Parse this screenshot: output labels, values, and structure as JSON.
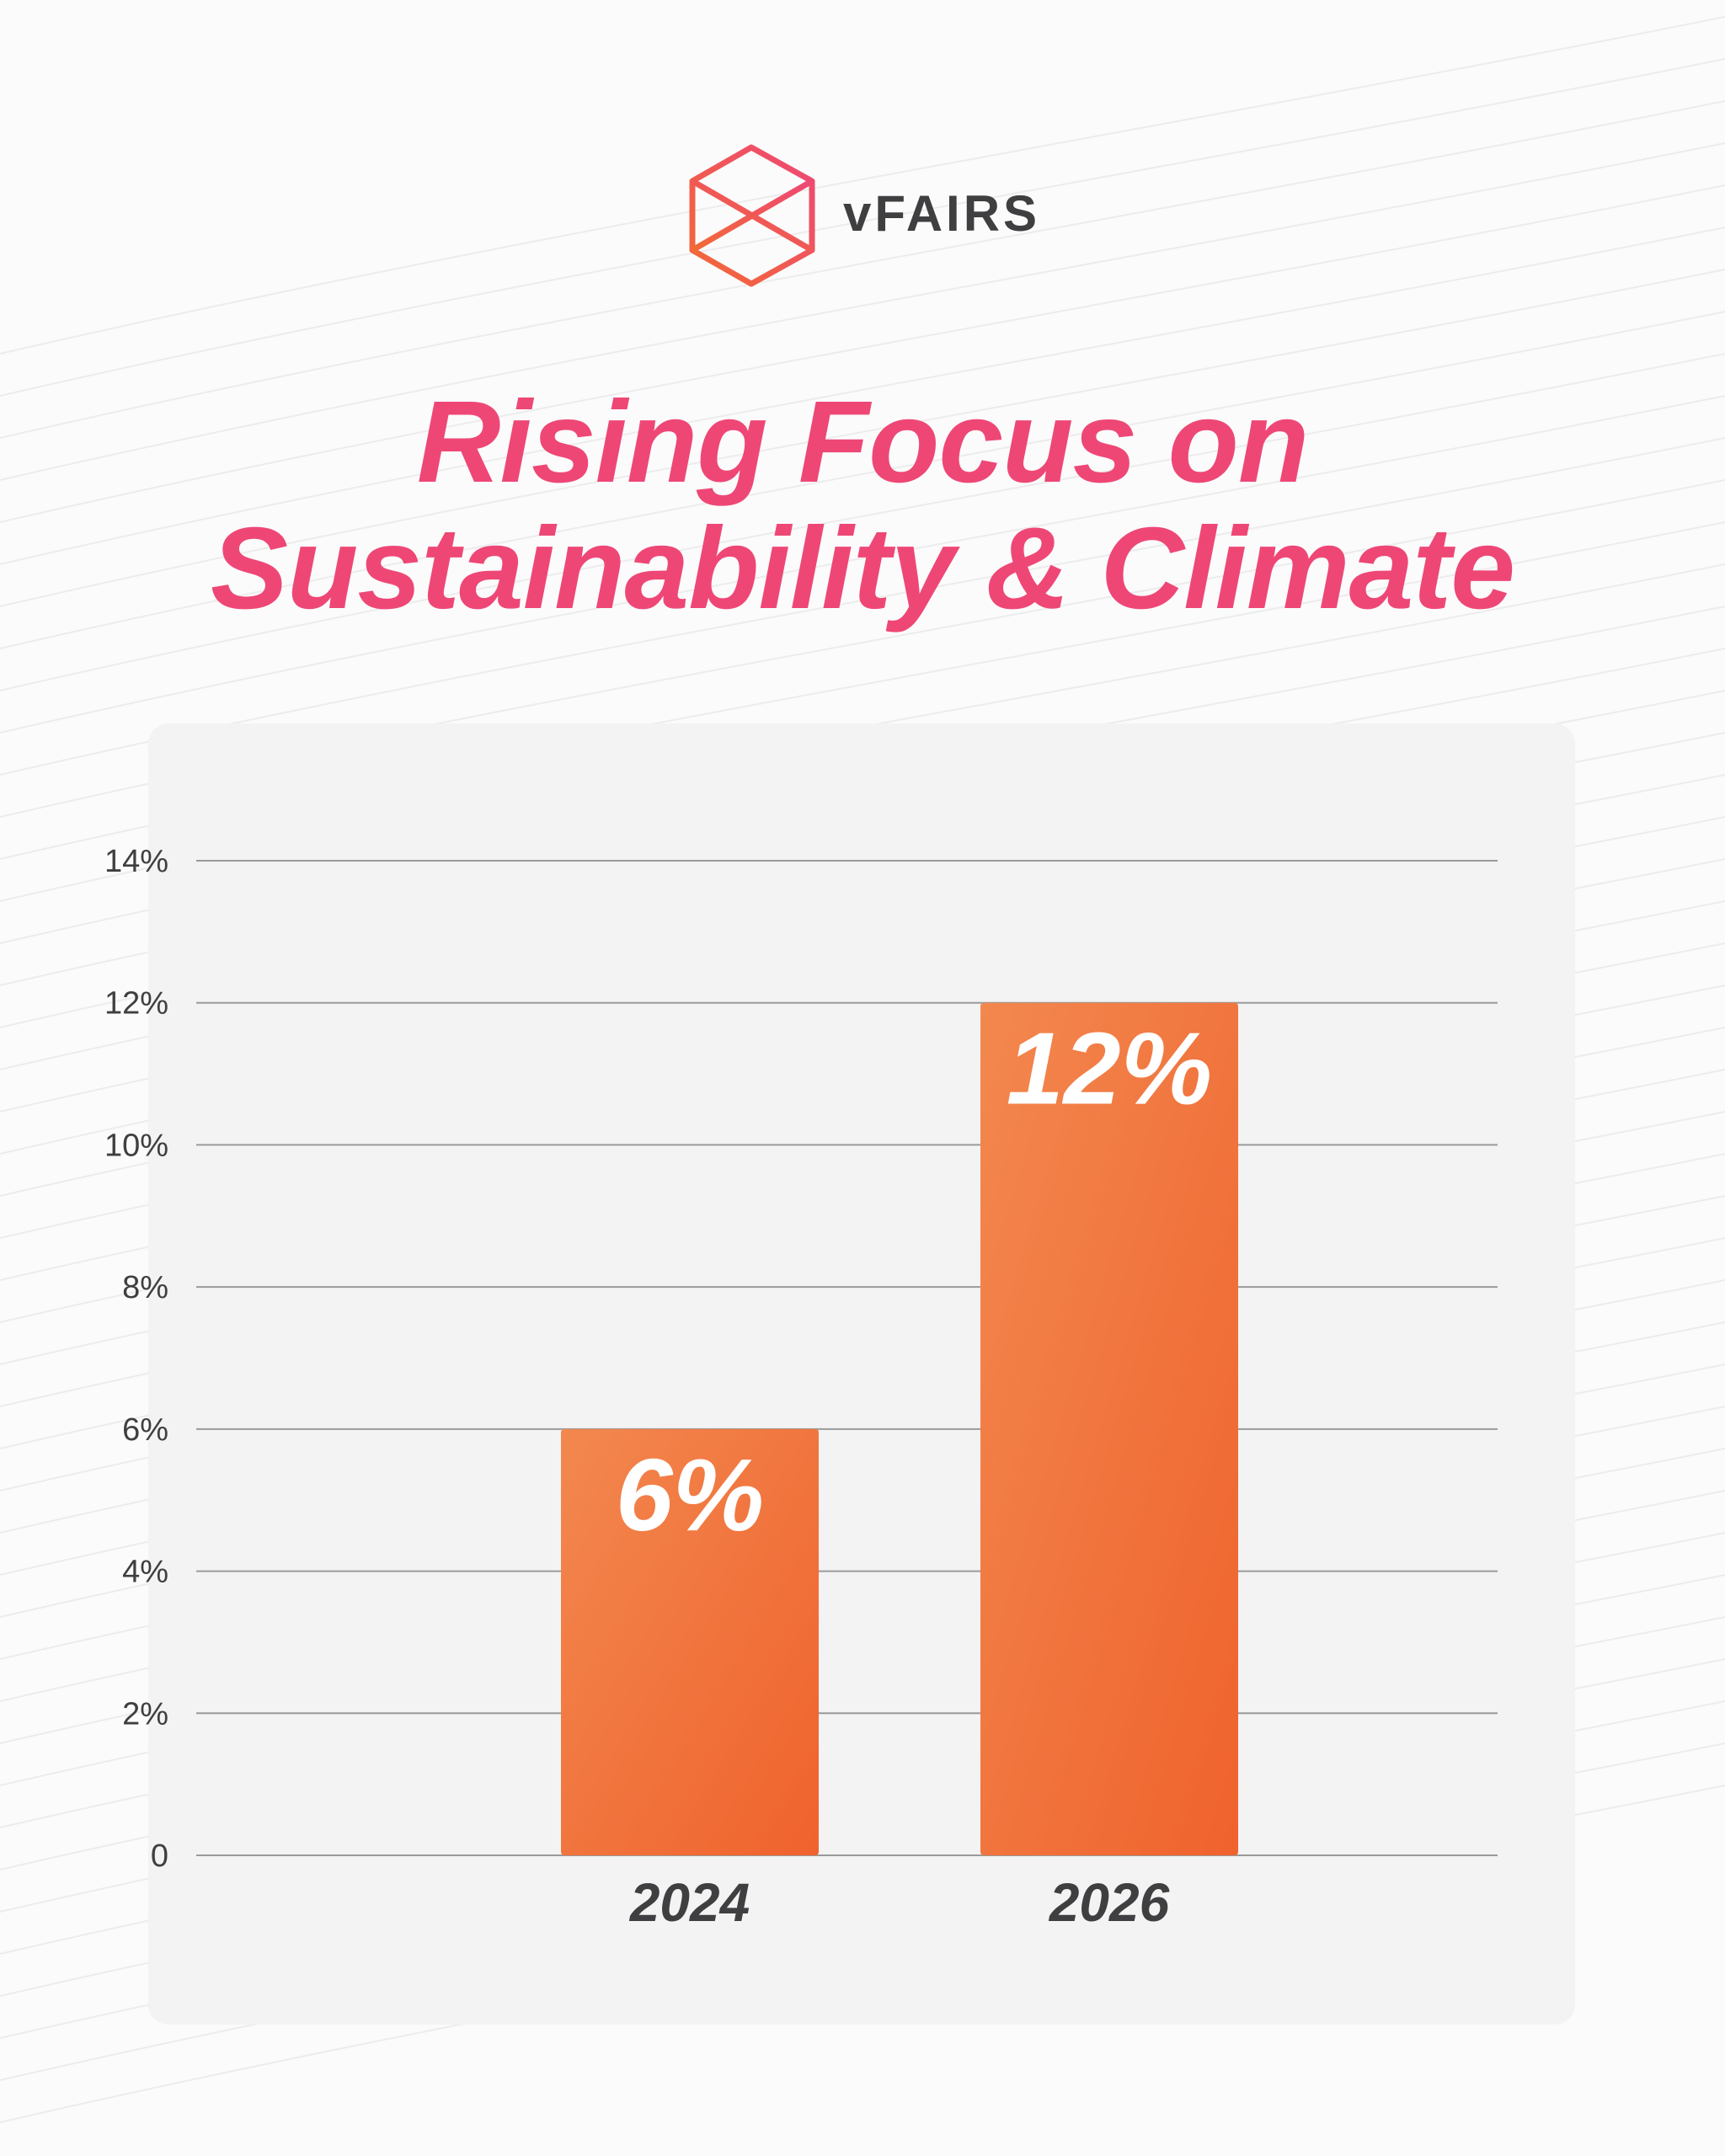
{
  "brand": {
    "name": "vFAIRS",
    "logo_icon": "hexagon-cube-icon",
    "gradient": [
      "#f26a35",
      "#ee4776"
    ]
  },
  "colors": {
    "title": "#ee4776",
    "bar_top": "#f2884f",
    "bar_bottom": "#f0622d",
    "axis_text": "#3f3f41",
    "grid": "#9a9a9a",
    "panel": "#f3f3f3"
  },
  "title_lines": [
    "Rising Focus on",
    "Sustainability & Climate"
  ],
  "chart_data": {
    "type": "bar",
    "title": "Rising Focus on Sustainability & Climate",
    "categories": [
      "2024",
      "2026"
    ],
    "values": [
      6,
      12
    ],
    "data_labels": [
      "6%",
      "12%"
    ],
    "ylim": [
      0,
      14
    ],
    "yticks": [
      0,
      2,
      4,
      6,
      8,
      10,
      12,
      14
    ],
    "ytick_labels": [
      "0",
      "2%",
      "4%",
      "6%",
      "8%",
      "10%",
      "12%",
      "14%"
    ],
    "grid": true,
    "xlabel": "",
    "ylabel": ""
  }
}
